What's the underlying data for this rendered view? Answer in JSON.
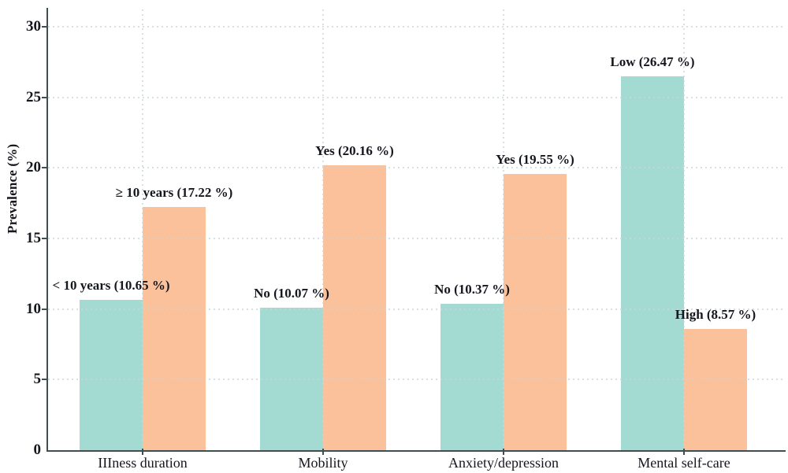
{
  "chart_data": {
    "type": "bar",
    "title": "",
    "xlabel": "",
    "ylabel": "Prevalence (%)",
    "ylim": [
      0,
      30
    ],
    "yticks": [
      0,
      5,
      10,
      15,
      20,
      25,
      30
    ],
    "legend": "none",
    "grid": "dotted horizontal gridlines at each y tick and dotted vertical gridlines at each category center",
    "categories": [
      "IIIness duration",
      "Mobility",
      "Anxiety/depression",
      "Mental self-care"
    ],
    "series": [
      {
        "name": "teal-left-bars",
        "color": "#a3dbd2",
        "values": [
          10.65,
          10.07,
          10.37,
          26.47
        ],
        "bar_labels": [
          "< 10 years (10.65 %)",
          "No (10.07 %)",
          "No (10.37 %)",
          "Low (26.47 %)"
        ]
      },
      {
        "name": "orange-right-bars",
        "color": "#fbc19b",
        "values": [
          17.22,
          20.16,
          19.55,
          8.57
        ],
        "bar_labels": [
          "≥ 10 years (17.22 %)",
          "Yes (20.16 %)",
          "Yes (19.55 %)",
          "High (8.57 %)"
        ]
      }
    ],
    "colors": {
      "axis": "#3f4f51",
      "text": "#15171e",
      "grid": "#ccd5d7",
      "background": "#ffffff"
    }
  }
}
